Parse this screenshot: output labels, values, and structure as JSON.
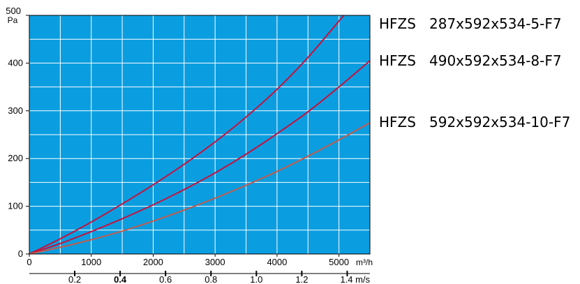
{
  "chart_data": {
    "type": "line",
    "y_unit": "Pa",
    "x_unit_top": "m³/h",
    "x_unit_bottom": "m/s",
    "xlim": [
      0,
      5500
    ],
    "ylim": [
      0,
      500
    ],
    "x_ticks": [
      "0",
      "1000",
      "2000",
      "3000",
      "4000",
      "5000"
    ],
    "y_ticks": [
      "0",
      "100",
      "200",
      "300",
      "400",
      "500"
    ],
    "velocity_ticks": [
      {
        "value": 0.2,
        "label": "0.2",
        "bold": false
      },
      {
        "value": 0.4,
        "label": "0.4",
        "bold": true
      },
      {
        "value": 0.6,
        "label": "0.6",
        "bold": false
      },
      {
        "value": 0.8,
        "label": "0.8",
        "bold": false
      },
      {
        "value": 1.0,
        "label": "1.0",
        "bold": false
      },
      {
        "value": 1.2,
        "label": "1.2",
        "bold": false
      },
      {
        "value": 1.4,
        "label": "1.4",
        "bold": false
      }
    ],
    "velocity_range": [
      0,
      1.5
    ],
    "grid": true,
    "plot_background": "#0a9ee0",
    "grid_color": "#ffffff",
    "series": [
      {
        "name": "HFZS   287x592x534-5-F7",
        "color": "#c8103c",
        "x": [
          0,
          500,
          1000,
          1500,
          2000,
          2500,
          3000,
          3500,
          4000,
          4500,
          5000,
          5080
        ],
        "y": [
          0,
          32,
          67,
          105,
          145,
          188,
          235,
          287,
          345,
          412,
          488,
          500
        ]
      },
      {
        "name": "HFZS   490x592x534-8-F7",
        "color": "#c8103c",
        "x": [
          0,
          500,
          1000,
          1500,
          2000,
          2500,
          3000,
          3500,
          4000,
          4500,
          5000,
          5500
        ],
        "y": [
          0,
          22,
          47,
          74,
          103,
          135,
          170,
          209,
          252,
          298,
          350,
          405
        ]
      },
      {
        "name": "HFZS   592x592x534-10-F7",
        "color": "#c25a4c",
        "x": [
          0,
          500,
          1000,
          1500,
          2000,
          2500,
          3000,
          3500,
          4000,
          4500,
          5000,
          5500
        ],
        "y": [
          0,
          14,
          30,
          48,
          69,
          92,
          117,
          144,
          173,
          205,
          239,
          275
        ]
      }
    ]
  }
}
